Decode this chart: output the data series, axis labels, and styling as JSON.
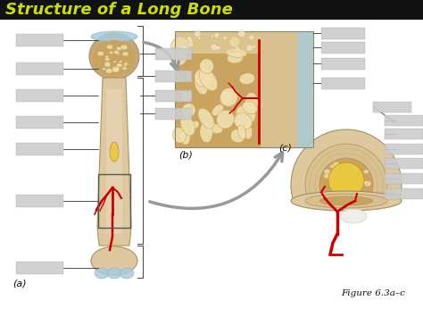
{
  "title": "Structure of a Long Bone",
  "title_color": "#ccdd00",
  "title_bg": "#111111",
  "title_fontsize": 13,
  "figure_bg": "#ffffff",
  "label_a": "(a)",
  "label_b": "(b)",
  "label_c": "(c)",
  "figure_label": "Figure 6.3a–c",
  "arrow_color": "#999999",
  "bone_tan": "#d4b896",
  "bone_outer": "#c8a878",
  "bone_shaft": "#ddc8a0",
  "bone_light": "#e8d5b7",
  "bone_dark": "#b89060",
  "spongy_color": "#c8a460",
  "spongy_light": "#e0c888",
  "spongy_hole": "#f0e0b0",
  "marrow_yellow": "#e8c840",
  "blood_red": "#cc0000",
  "cartilage_blue": "#a8ccdd",
  "periosteum_blue": "#88bbcc",
  "label_box_color": "#cccccc",
  "compact_bone": "#d8c090"
}
